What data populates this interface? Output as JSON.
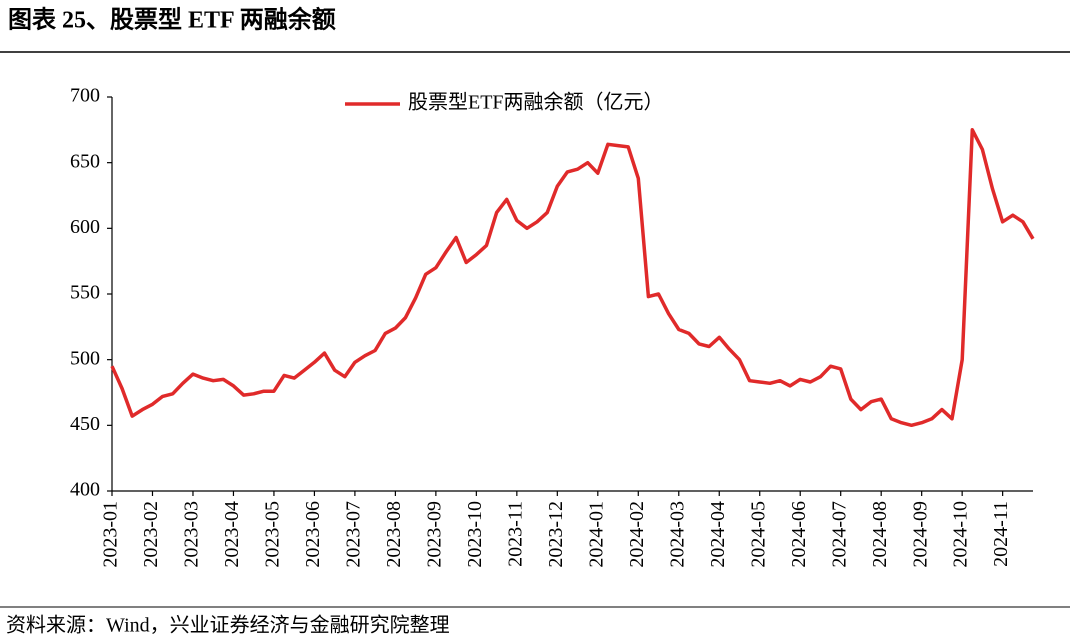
{
  "chart_data": {
    "type": "line",
    "title": "图表 25、股票型 ETF 两融余额",
    "categories": [
      "2023-01",
      null,
      null,
      null,
      "2023-02",
      null,
      null,
      null,
      "2023-03",
      null,
      null,
      null,
      "2023-04",
      null,
      null,
      null,
      "2023-05",
      null,
      null,
      null,
      "2023-06",
      null,
      null,
      null,
      "2023-07",
      null,
      null,
      null,
      "2023-08",
      null,
      null,
      null,
      "2023-09",
      null,
      null,
      null,
      "2023-10",
      null,
      null,
      null,
      "2023-11",
      null,
      null,
      null,
      "2023-12",
      null,
      null,
      null,
      "2024-01",
      null,
      null,
      null,
      "2024-02",
      null,
      null,
      null,
      "2024-03",
      null,
      null,
      null,
      "2024-04",
      null,
      null,
      null,
      "2024-05",
      null,
      null,
      null,
      "2024-06",
      null,
      null,
      null,
      "2024-07",
      null,
      null,
      null,
      "2024-08",
      null,
      null,
      null,
      "2024-09",
      null,
      null,
      null,
      "2024-10",
      null,
      null,
      null,
      "2024-11",
      null,
      null,
      null
    ],
    "series": [
      {
        "name": "股票型ETF两融余额（亿元）",
        "color": "#e02a2a",
        "values": [
          495,
          478,
          457,
          462,
          466,
          472,
          474,
          482,
          489,
          486,
          484,
          485,
          480,
          473,
          474,
          476,
          476,
          488,
          486,
          492,
          498,
          505,
          492,
          487,
          498,
          503,
          507,
          520,
          524,
          532,
          547,
          565,
          570,
          582,
          593,
          574,
          580,
          587,
          612,
          622,
          606,
          600,
          605,
          612,
          632,
          643,
          645,
          650,
          642,
          664,
          663,
          662,
          638,
          548,
          550,
          535,
          523,
          520,
          512,
          510,
          517,
          508,
          500,
          484,
          483,
          482,
          484,
          480,
          485,
          483,
          487,
          495,
          493,
          470,
          462,
          468,
          470,
          455,
          452,
          450,
          452,
          455,
          462,
          455,
          500,
          675,
          660,
          630,
          605,
          610,
          605,
          592
        ]
      }
    ],
    "ylim": [
      400,
      700
    ],
    "yticks": [
      400,
      450,
      500,
      550,
      600,
      650,
      700
    ],
    "legend": "top"
  },
  "source": "资料来源：Wind，兴业证券经济与金融研究院整理"
}
